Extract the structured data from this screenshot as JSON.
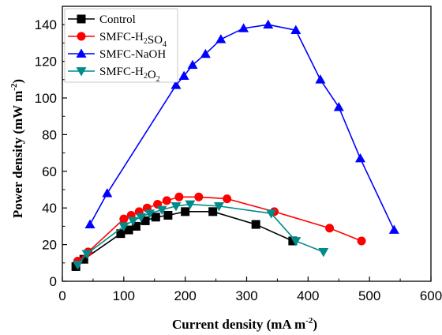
{
  "chart_data": {
    "type": "scatter",
    "title": "",
    "xlabel_main": "Current density (mA m",
    "xlabel_sup": "-2",
    "xlabel_end": ")",
    "ylabel_main": "Power density (mW m",
    "ylabel_sup": "-2",
    "ylabel_end": ")",
    "xlim": [
      0,
      600
    ],
    "ylim": [
      0,
      150
    ],
    "x_ticks": [
      0,
      100,
      200,
      300,
      400,
      500,
      600
    ],
    "y_ticks": [
      0,
      20,
      40,
      60,
      80,
      100,
      120,
      140
    ],
    "x_tick_labels": [
      "0",
      "100",
      "200",
      "300",
      "400",
      "500",
      "600"
    ],
    "y_tick_labels": [
      "0",
      "20",
      "40",
      "60",
      "80",
      "100",
      "120",
      "140"
    ],
    "grid": false,
    "legend_position": "top-left",
    "series": [
      {
        "name": "Control",
        "legend_parts": [
          {
            "t": "Control",
            "s": ""
          }
        ],
        "color": "#000000",
        "marker": "square",
        "x": [
          22,
          35,
          95,
          108,
          120,
          135,
          152,
          172,
          200,
          245,
          315,
          375
        ],
        "y": [
          8,
          12,
          26,
          28,
          30,
          33,
          35,
          36,
          38,
          38,
          31,
          22
        ]
      },
      {
        "name": "SMFC-H2SO4",
        "legend_parts": [
          {
            "t": "SMFC-H",
            "s": ""
          },
          {
            "t": "2",
            "s": "sub"
          },
          {
            "t": "SO",
            "s": ""
          },
          {
            "t": "4",
            "s": "sub"
          }
        ],
        "color": "#ff0000",
        "marker": "circle",
        "x": [
          25,
          42,
          100,
          112,
          125,
          138,
          155,
          170,
          190,
          222,
          268,
          345,
          435,
          487
        ],
        "y": [
          11,
          16,
          34,
          36,
          38,
          40,
          42,
          44,
          46,
          46,
          45,
          38,
          29,
          22
        ]
      },
      {
        "name": "SMFC-NaOH",
        "legend_parts": [
          {
            "t": "SMFC-NaOH",
            "s": ""
          }
        ],
        "color": "#0000ff",
        "marker": "triangle-up",
        "x": [
          45,
          73,
          185,
          198,
          212,
          233,
          258,
          295,
          335,
          380,
          420,
          450,
          485,
          540
        ],
        "y": [
          31,
          48,
          107,
          112,
          118,
          124,
          132,
          138,
          140,
          137,
          110,
          95,
          67,
          28
        ]
      },
      {
        "name": "SMFC-H2O2",
        "legend_parts": [
          {
            "t": "SMFC-H",
            "s": ""
          },
          {
            "t": "2",
            "s": "sub"
          },
          {
            "t": "O",
            "s": ""
          },
          {
            "t": "2",
            "s": "sub"
          }
        ],
        "color": "#008b8b",
        "marker": "triangle-down",
        "x": [
          25,
          40,
          100,
          115,
          128,
          142,
          162,
          185,
          208,
          255,
          340,
          380,
          425
        ],
        "y": [
          9,
          15,
          30,
          33,
          35,
          37,
          39,
          41,
          42,
          41,
          37,
          22,
          16
        ]
      }
    ]
  }
}
